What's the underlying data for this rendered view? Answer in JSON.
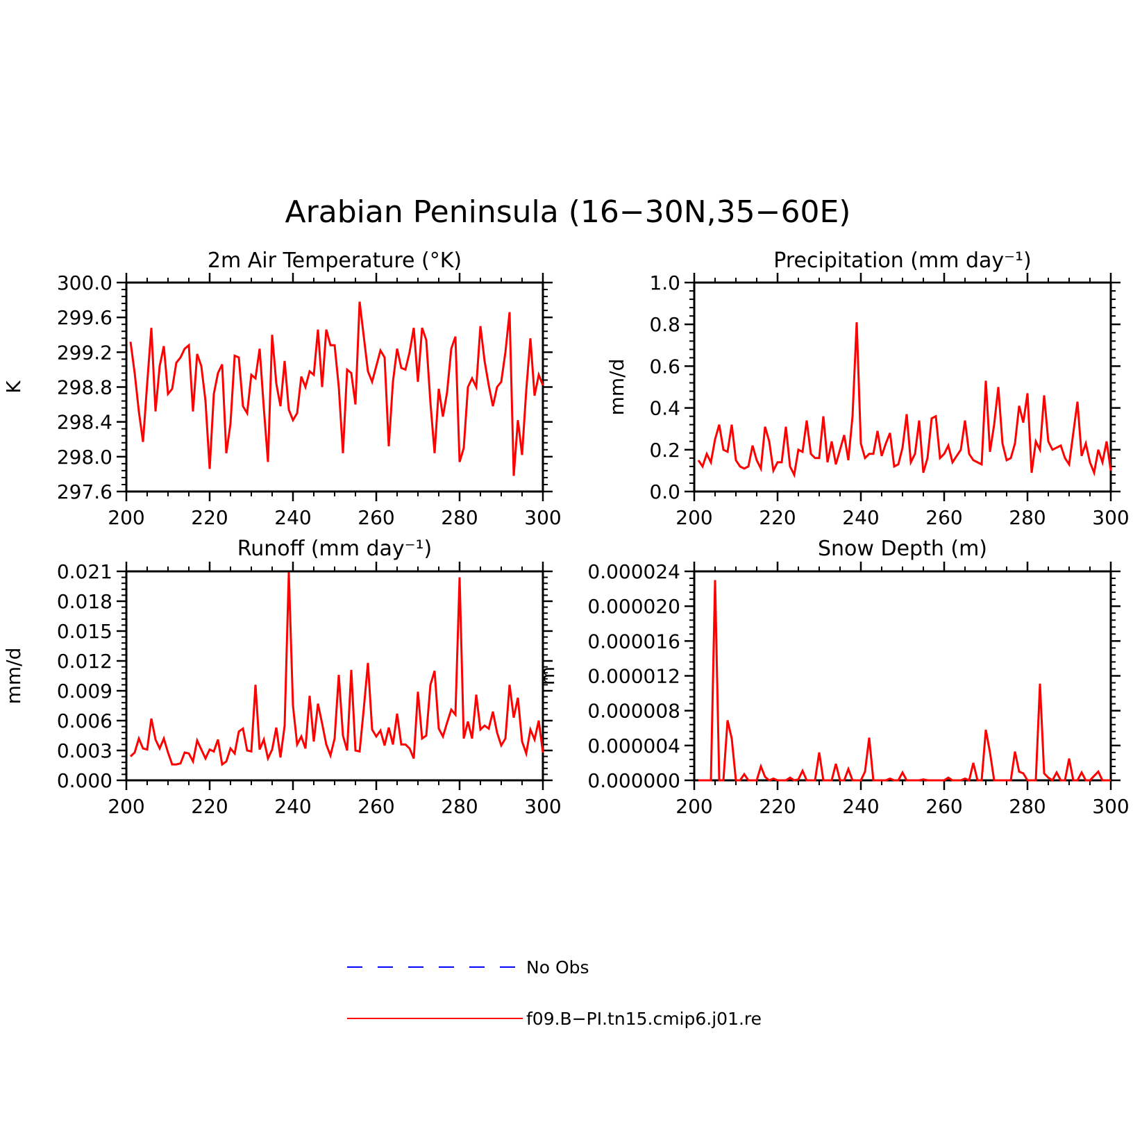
{
  "figure": {
    "title": "Arabian Peninsula (16−30N,35−60E)"
  },
  "legend": [
    {
      "label": "No Obs",
      "color": "#0000ff",
      "style": "dashed"
    },
    {
      "label": "f09.B−PI.tn15.cmip6.j01.re",
      "color": "#ff0000",
      "style": "solid"
    }
  ],
  "chart_data": [
    {
      "type": "line",
      "title": "2m Air Temperature (°K)",
      "xlabel": "",
      "ylabel": "K",
      "xlim": [
        200,
        300
      ],
      "ylim": [
        297.6,
        300.0
      ],
      "xticks": [
        200,
        220,
        240,
        260,
        280,
        300
      ],
      "yticks": [
        297.6,
        298.0,
        298.4,
        298.8,
        299.2,
        299.6,
        300.0
      ],
      "ytick_labels": [
        "297.6",
        "298.0",
        "298.4",
        "298.8",
        "299.2",
        "299.6",
        "300.0"
      ],
      "x_start": 201,
      "series": [
        {
          "name": "f09.B−PI.tn15.cmip6.j01.re",
          "color": "#ff0000",
          "values": [
            299.32,
            298.96,
            298.52,
            298.17,
            298.84,
            299.48,
            298.52,
            299.04,
            299.27,
            298.72,
            298.78,
            299.08,
            299.14,
            299.24,
            299.28,
            298.52,
            299.18,
            299.04,
            298.64,
            297.86,
            298.72,
            298.96,
            299.06,
            298.04,
            298.38,
            299.16,
            299.14,
            298.58,
            298.5,
            298.94,
            298.9,
            299.24,
            298.56,
            297.94,
            299.4,
            298.84,
            298.58,
            299.1,
            298.54,
            298.42,
            298.5,
            298.92,
            298.8,
            298.98,
            298.94,
            299.46,
            298.8,
            299.46,
            299.28,
            299.28,
            298.8,
            298.04,
            299.0,
            298.96,
            298.6,
            299.78,
            299.38,
            298.98,
            298.86,
            299.04,
            299.22,
            299.14,
            298.12,
            298.86,
            299.24,
            299.02,
            299.0,
            299.2,
            299.48,
            298.86,
            299.48,
            299.34,
            298.62,
            298.04,
            298.78,
            298.46,
            298.74,
            299.24,
            299.38,
            297.94,
            298.1,
            298.8,
            298.9,
            298.8,
            299.5,
            299.1,
            298.82,
            298.58,
            298.8,
            298.86,
            299.2,
            299.66,
            297.78,
            298.42,
            298.02,
            298.76,
            299.36,
            298.7,
            298.94,
            298.82
          ]
        }
      ]
    },
    {
      "type": "line",
      "title": "Precipitation (mm day⁻¹)",
      "xlabel": "",
      "ylabel": "mm/d",
      "xlim": [
        200,
        300
      ],
      "ylim": [
        0.0,
        1.0
      ],
      "xticks": [
        200,
        220,
        240,
        260,
        280,
        300
      ],
      "yticks": [
        0.0,
        0.2,
        0.4,
        0.6,
        0.8,
        1.0
      ],
      "ytick_labels": [
        "0.0",
        "0.2",
        "0.4",
        "0.6",
        "0.8",
        "1.0"
      ],
      "x_start": 201,
      "series": [
        {
          "name": "f09.B−PI.tn15.cmip6.j01.re",
          "color": "#ff0000",
          "values": [
            0.15,
            0.12,
            0.18,
            0.14,
            0.25,
            0.32,
            0.2,
            0.19,
            0.32,
            0.15,
            0.12,
            0.11,
            0.12,
            0.22,
            0.15,
            0.11,
            0.31,
            0.24,
            0.1,
            0.14,
            0.14,
            0.31,
            0.12,
            0.08,
            0.2,
            0.19,
            0.34,
            0.18,
            0.16,
            0.16,
            0.36,
            0.14,
            0.24,
            0.13,
            0.2,
            0.27,
            0.15,
            0.36,
            0.81,
            0.23,
            0.16,
            0.18,
            0.18,
            0.29,
            0.17,
            0.23,
            0.28,
            0.12,
            0.13,
            0.21,
            0.37,
            0.14,
            0.18,
            0.34,
            0.09,
            0.16,
            0.35,
            0.36,
            0.16,
            0.18,
            0.22,
            0.14,
            0.17,
            0.2,
            0.34,
            0.18,
            0.15,
            0.14,
            0.13,
            0.53,
            0.19,
            0.32,
            0.5,
            0.23,
            0.15,
            0.16,
            0.23,
            0.41,
            0.33,
            0.47,
            0.09,
            0.24,
            0.2,
            0.46,
            0.24,
            0.2,
            0.21,
            0.22,
            0.16,
            0.13,
            0.28,
            0.43,
            0.17,
            0.23,
            0.14,
            0.09,
            0.2,
            0.14,
            0.24,
            0.1
          ]
        }
      ]
    },
    {
      "type": "line",
      "title": "Runoff (mm day⁻¹)",
      "xlabel": "",
      "ylabel": "mm/d",
      "xlim": [
        200,
        300
      ],
      "ylim": [
        0.0,
        0.021
      ],
      "xticks": [
        200,
        220,
        240,
        260,
        280,
        300
      ],
      "yticks": [
        0.0,
        0.003,
        0.006,
        0.009,
        0.012,
        0.015,
        0.018,
        0.021
      ],
      "ytick_labels": [
        "0.000",
        "0.003",
        "0.006",
        "0.009",
        "0.012",
        "0.015",
        "0.018",
        "0.021"
      ],
      "x_start": 201,
      "series": [
        {
          "name": "f09.B−PI.tn15.cmip6.j01.re",
          "color": "#ff0000",
          "values": [
            0.0024,
            0.0028,
            0.0042,
            0.0032,
            0.0031,
            0.0062,
            0.0041,
            0.0032,
            0.0042,
            0.0028,
            0.0016,
            0.0016,
            0.0017,
            0.0028,
            0.0027,
            0.0019,
            0.004,
            0.0031,
            0.0022,
            0.0031,
            0.0029,
            0.0041,
            0.0016,
            0.0019,
            0.0032,
            0.0027,
            0.0049,
            0.0052,
            0.003,
            0.0029,
            0.0096,
            0.0031,
            0.0041,
            0.0022,
            0.0031,
            0.0053,
            0.0023,
            0.0055,
            0.0209,
            0.0075,
            0.0036,
            0.0044,
            0.0032,
            0.0085,
            0.0039,
            0.0077,
            0.0057,
            0.0036,
            0.0025,
            0.0042,
            0.0106,
            0.0045,
            0.003,
            0.0111,
            0.003,
            0.0029,
            0.0072,
            0.0118,
            0.0051,
            0.0044,
            0.005,
            0.0035,
            0.0053,
            0.0036,
            0.0067,
            0.0036,
            0.0036,
            0.0032,
            0.0022,
            0.0089,
            0.0042,
            0.0045,
            0.0096,
            0.011,
            0.0052,
            0.0044,
            0.0058,
            0.0071,
            0.0066,
            0.0204,
            0.0042,
            0.0059,
            0.0042,
            0.0086,
            0.0051,
            0.0055,
            0.0052,
            0.0069,
            0.0048,
            0.0035,
            0.0042,
            0.0096,
            0.0063,
            0.0083,
            0.0039,
            0.0027,
            0.0051,
            0.0041,
            0.006,
            0.0028
          ]
        }
      ]
    },
    {
      "type": "line",
      "title": "Snow Depth (m)",
      "xlabel": "",
      "ylabel": "m",
      "xlim": [
        200,
        300
      ],
      "ylim": [
        0.0,
        2.4e-05
      ],
      "xticks": [
        200,
        220,
        240,
        260,
        280,
        300
      ],
      "yticks": [
        0.0,
        4e-06,
        8e-06,
        1.2e-05,
        1.6e-05,
        2e-05,
        2.4e-05
      ],
      "ytick_labels": [
        "0.000000",
        "0.000004",
        "0.000008",
        "0.000012",
        "0.000016",
        "0.000020",
        "0.000024"
      ],
      "x_start": 201,
      "series": [
        {
          "name": "f09.B−PI.tn15.cmip6.j01.re",
          "color": "#ff0000",
          "values": [
            0,
            0,
            0,
            0,
            2.3e-05,
            0,
            0,
            6.9e-06,
            4.8e-06,
            0,
            0,
            7e-07,
            0,
            0,
            0,
            1.6e-06,
            4e-07,
            0,
            2e-07,
            0,
            0,
            0,
            3e-07,
            0,
            1e-07,
            1.1e-06,
            0,
            0,
            0,
            3.2e-06,
            0,
            0,
            0,
            1.9e-06,
            0,
            0,
            1.3e-06,
            0,
            0,
            0,
            1e-06,
            4.9e-06,
            0,
            0,
            0,
            0,
            2e-07,
            0,
            0,
            9e-07,
            0,
            0,
            0,
            0,
            1e-07,
            0,
            0,
            0,
            0,
            0,
            3e-07,
            0,
            0,
            0,
            2e-07,
            0,
            2e-06,
            0,
            0,
            5.8e-06,
            3.2e-06,
            0,
            0,
            0,
            0,
            0,
            3.3e-06,
            1e-06,
            8e-07,
            0,
            0,
            0,
            1.11e-05,
            8e-07,
            3e-07,
            0,
            9e-07,
            0,
            0,
            2.5e-06,
            0,
            0,
            9e-07,
            0,
            0,
            5e-07,
            1e-06,
            0,
            0,
            0
          ]
        }
      ]
    }
  ]
}
